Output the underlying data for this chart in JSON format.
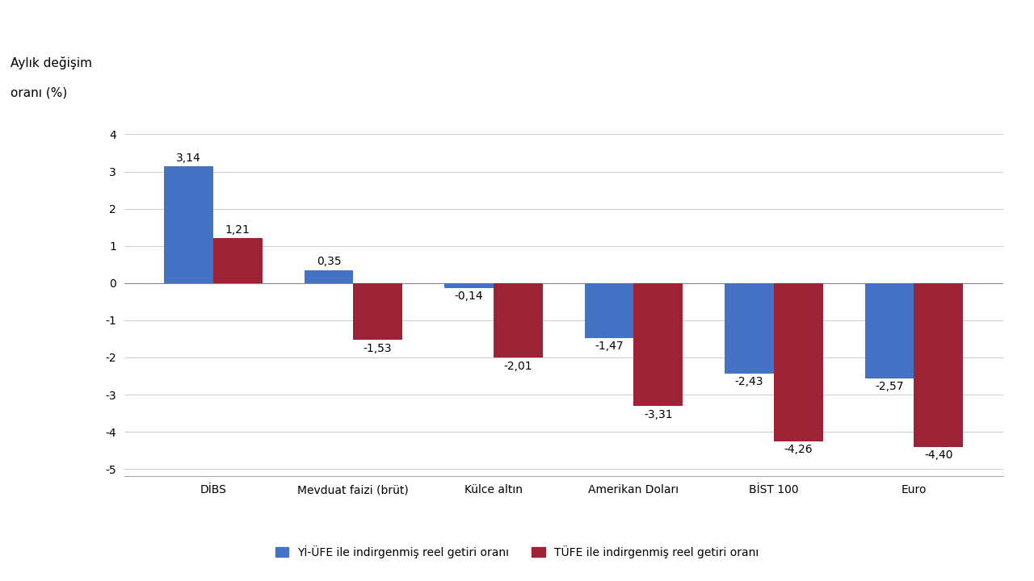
{
  "categories": [
    "DİBS",
    "Mevduat faizi (brüt)",
    "Külce altın",
    "Amerikan Doları",
    "BİST 100",
    "Euro"
  ],
  "yi_ufe_values": [
    3.14,
    0.35,
    -0.14,
    -1.47,
    -2.43,
    -2.57
  ],
  "tufe_values": [
    1.21,
    -1.53,
    -2.01,
    -3.31,
    -4.26,
    -4.4
  ],
  "yi_ufe_color": "#4472C4",
  "tufe_color": "#9B2335",
  "ylabel_line1": "Aylık değişim",
  "ylabel_line2": "oranı (%)",
  "ylim": [
    -5.2,
    4.8
  ],
  "yticks": [
    -5,
    -4,
    -3,
    -2,
    -1,
    0,
    1,
    2,
    3,
    4
  ],
  "legend_yi_ufe": "Yİ-ÜFE ile indirgenmiş reel getiri oranı",
  "legend_tufe": "TÜFE ile indirgenmiş reel getiri oranı",
  "background_color": "#FFFFFF",
  "bar_width": 0.35,
  "label_fontsize": 10,
  "tick_fontsize": 10,
  "legend_fontsize": 10,
  "ylabel_fontsize": 11
}
